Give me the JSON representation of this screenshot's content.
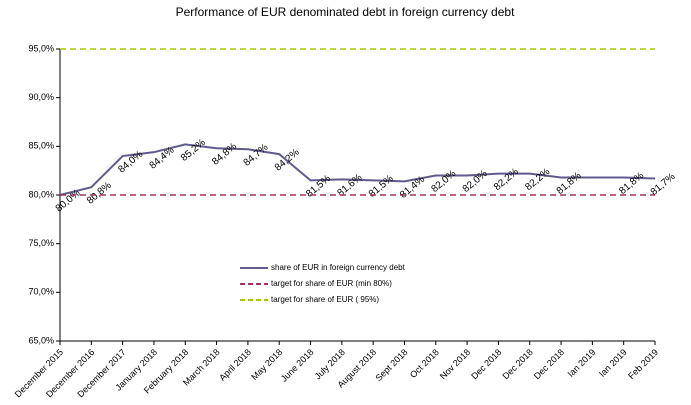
{
  "chart_data": {
    "type": "line",
    "title": "Performance of EUR denominated debt in foreign currency debt",
    "categories": [
      "December 2015",
      "December 2016",
      "December 2017",
      "January 2018",
      "February 2018",
      "March 2018",
      "April 2018",
      "May 2018",
      "June 2018",
      "July 2018",
      "August 2018",
      "Sept 2018",
      "Oct 2018",
      "Nov 2018",
      "Dec 2018",
      "Dec 2018",
      "Dec 2018",
      "Ian 2019",
      "Ian 2019",
      "Feb 2019"
    ],
    "series": [
      {
        "name": "share of EUR in foreign currency debt",
        "color": "#5f5b8e",
        "dashed": false,
        "values": [
          80.0,
          80.8,
          84.0,
          84.4,
          85.2,
          84.8,
          84.7,
          84.2,
          81.5,
          81.6,
          81.5,
          81.4,
          82.0,
          82.0,
          82.2,
          82.2,
          81.8,
          81.8,
          81.8,
          81.7
        ],
        "value_labels": [
          "80,0%",
          "80,8%",
          "84,0%",
          "84,4%",
          "85,2%",
          "84,8%",
          "84,7%",
          "84,2%",
          "81,5%",
          "81,6%",
          "81,5%",
          "81,4%",
          "82,0%",
          "82,0%",
          "82,2%",
          "82,2%",
          "81,8%",
          null,
          "81,8%",
          "81,7%"
        ]
      },
      {
        "name": "target for share of EUR (min 80%)",
        "color": "#a3305e",
        "dashed": true,
        "values": [
          80,
          80,
          80,
          80,
          80,
          80,
          80,
          80,
          80,
          80,
          80,
          80,
          80,
          80,
          80,
          80,
          80,
          80,
          80,
          80
        ]
      },
      {
        "name": "target for share of EUR ( 95%)",
        "color": "#a8c800",
        "dashed": true,
        "values": [
          95,
          95,
          95,
          95,
          95,
          95,
          95,
          95,
          95,
          95,
          95,
          95,
          95,
          95,
          95,
          95,
          95,
          95,
          95,
          95
        ]
      }
    ],
    "ylim": [
      65,
      95
    ],
    "yticks": [
      {
        "value": 65,
        "label": "65,0%"
      },
      {
        "value": 70,
        "label": "70,0%"
      },
      {
        "value": 75,
        "label": "75,0%"
      },
      {
        "value": 80,
        "label": "80,0%"
      },
      {
        "value": 85,
        "label": "85,0%"
      },
      {
        "value": 90,
        "label": "90,0%"
      },
      {
        "value": 95,
        "label": "95,0%"
      }
    ],
    "grid": false
  }
}
